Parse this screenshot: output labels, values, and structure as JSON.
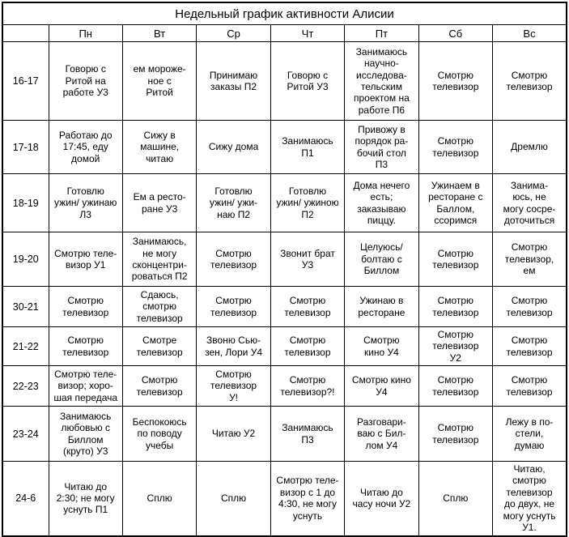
{
  "chart_data": {
    "type": "table",
    "title": "Недельный график активности Алисии",
    "columns": [
      "",
      "Пн",
      "Вт",
      "Ср",
      "Чт",
      "Пт",
      "Сб",
      "Вс"
    ],
    "rows": [
      {
        "time": "16-17",
        "cells": [
          "Говорю с\nРитой на\nработе У3",
          "ем мороже-\nное с\nРитой",
          "Принимаю\nзаказы П2",
          "Говорю с\nРитой У3",
          "Занимаюсь\nнаучно-\nисследова-\nтельским\nпроектом на\nработе П6",
          "Смотрю\nтелевизор",
          "Смотрю\nтелевизор"
        ]
      },
      {
        "time": "17-18",
        "cells": [
          "Работаю до\n17:45, еду\nдомой",
          "Сижу в\nмашине,\nчитаю",
          "Сижу дома",
          "Занимаюсь\nП1",
          "Привожу в\nпорядок ра-\nбочий стол\nП3",
          "Смотрю\nтелевизор",
          "Дремлю"
        ]
      },
      {
        "time": "18-19",
        "cells": [
          "Готовлю\nужин/ ужинаю\nЛ3",
          "Ем а ресто-\nране У3",
          "Готовлю\nужин/ ужи-\nнаю П2",
          "Готовлю\nужин/ ужиною\nП2",
          "Дома нечего\nесть;\nзаказываю\nпиццу.",
          "Ужинаем в\nресторане с\nБаллом,\nссоримся",
          "Занима-\nюсь, не\nмогу сосре-\nдоточиться"
        ]
      },
      {
        "time": "19-20",
        "cells": [
          "Смотрю теле-\nвизор У1",
          "Занимаюсь,\nне могу\nсконцентри-\nроваться П2",
          "Смотрю\nтелевизор",
          "Звонит брат\nУ3",
          "Целуюсь/\nболтаю с\nБиллом",
          "Смотрю\nтелевизор",
          "Смотрю\nтелевизор,\nем"
        ]
      },
      {
        "time": "30-21",
        "cells": [
          "Смотрю\nтелевизор",
          "Сдаюсь,\nсмотрю\nтелевизор",
          "Смотрю\nтелевизор",
          "Смотрю\nтелевизор",
          "Ужинаю в\nресторане",
          "Смотрю\nтелевизор",
          "Смотрю\nтелевизор"
        ]
      },
      {
        "time": "21-22",
        "cells": [
          "Смотрю\nтелевизор",
          "Смотре\nтелевизор",
          "Звоню Сью-\nзен, Лори У4",
          "Смотрю\nтелевизор",
          "Смотрю\nкино У4",
          "Смотрю\nтелевизор\nУ2",
          "Смотрю\nтелевизор"
        ]
      },
      {
        "time": "22-23",
        "cells": [
          "Смотрю теле-\nвизор; хоро-\nшая передача",
          "Смотрю\nтелевизор",
          "Смотрю\nтелевизор\nУ!",
          "Смотрю\nтелевизор?!",
          "Смотрю кино\nУ4",
          "Смотрю\nтелевизор",
          "Смотрю\nтелевизор"
        ]
      },
      {
        "time": "23-24",
        "cells": [
          "Занимаюсь\nлюбовью с\nБиллом\n(круто) У3",
          "Беспокоюсь\nпо поводу\nучебы",
          "Читаю У2",
          "Занимаюсь\nП3",
          "Разговари-\nваю с Бил-\nлом У4",
          "Смотрю\nтелевизор",
          "Лежу в по-\nстели,\nдумаю"
        ]
      },
      {
        "time": "24-6",
        "cells": [
          "Читаю до\n2:30; не могу\nуснуть П1",
          "Сплю",
          "Сплю",
          "Смотрю теле-\nвизор с 1 до\n4:30, не могу\nуснуть",
          "Читаю до\nчасу ночи У2",
          "Сплю",
          "Читаю,\nсмотрю\nтелевизор\nдо двух, не\nмогу уснуть\nУ1."
        ]
      }
    ],
    "colors": {
      "border": "#000000",
      "background": "#ffffff",
      "text": "#000000"
    },
    "layout": {
      "grid": true,
      "header_position": "top",
      "time_column_position": "left"
    }
  }
}
